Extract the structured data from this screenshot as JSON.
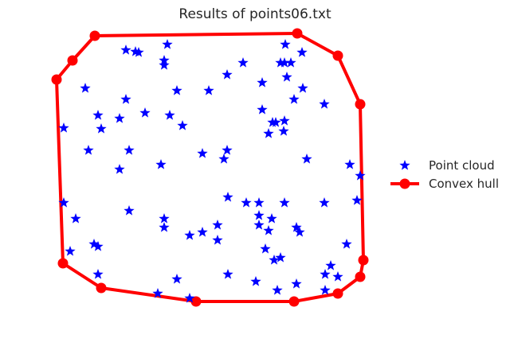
{
  "chart_data": {
    "type": "scatter",
    "title": "Results of points06.txt",
    "xlabel": "",
    "ylabel": "",
    "grid": false,
    "axes_visible": false,
    "legend_placement": "center-right, outside plot",
    "series": [
      {
        "name": "Point cloud",
        "kind": "scatter",
        "marker": "star",
        "color": "#0000ff",
        "points": [
          [
            158,
            63
          ],
          [
            170,
            65
          ],
          [
            174,
            66
          ],
          [
            210,
            56
          ],
          [
            206,
            76
          ],
          [
            206,
            82
          ],
          [
            305,
            79
          ],
          [
            358,
            56
          ],
          [
            352,
            79
          ],
          [
            357,
            79
          ],
          [
            365,
            79
          ],
          [
            379,
            66
          ],
          [
            360,
            97
          ],
          [
            329,
            104
          ],
          [
            380,
            111
          ],
          [
            369,
            125
          ],
          [
            407,
            131
          ],
          [
            107,
            111
          ],
          [
            222,
            114
          ],
          [
            262,
            114
          ],
          [
            285,
            94
          ],
          [
            158,
            125
          ],
          [
            182,
            142
          ],
          [
            213,
            145
          ],
          [
            150,
            149
          ],
          [
            229,
            158
          ],
          [
            123,
            145
          ],
          [
            127,
            162
          ],
          [
            80,
            161
          ],
          [
            329,
            138
          ],
          [
            342,
            154
          ],
          [
            346,
            154
          ],
          [
            357,
            152
          ],
          [
            356,
            165
          ],
          [
            337,
            168
          ],
          [
            111,
            189
          ],
          [
            162,
            189
          ],
          [
            150,
            213
          ],
          [
            202,
            207
          ],
          [
            254,
            193
          ],
          [
            285,
            189
          ],
          [
            281,
            200
          ],
          [
            385,
            200
          ],
          [
            439,
            207
          ],
          [
            452,
            221
          ],
          [
            80,
            255
          ],
          [
            95,
            275
          ],
          [
            162,
            265
          ],
          [
            206,
            275
          ],
          [
            206,
            286
          ],
          [
            238,
            296
          ],
          [
            254,
            292
          ],
          [
            273,
            283
          ],
          [
            273,
            302
          ],
          [
            286,
            248
          ],
          [
            309,
            255
          ],
          [
            325,
            255
          ],
          [
            357,
            255
          ],
          [
            325,
            271
          ],
          [
            341,
            275
          ],
          [
            325,
            283
          ],
          [
            337,
            290
          ],
          [
            372,
            286
          ],
          [
            376,
            292
          ],
          [
            407,
            255
          ],
          [
            448,
            252
          ],
          [
            435,
            307
          ],
          [
            88,
            316
          ],
          [
            118,
            307
          ],
          [
            123,
            310
          ],
          [
            333,
            313
          ],
          [
            352,
            324
          ],
          [
            344,
            327
          ],
          [
            415,
            334
          ],
          [
            408,
            345
          ],
          [
            424,
            348
          ],
          [
            123,
            345
          ],
          [
            222,
            351
          ],
          [
            286,
            345
          ],
          [
            321,
            354
          ],
          [
            348,
            365
          ],
          [
            372,
            357
          ],
          [
            408,
            365
          ],
          [
            198,
            369
          ],
          [
            238,
            375
          ]
        ]
      },
      {
        "name": "Convex hull",
        "kind": "line",
        "marker": "circle",
        "color": "#ff0000",
        "points": [
          [
            119,
            45
          ],
          [
            373,
            42
          ],
          [
            424,
            70
          ],
          [
            452,
            131
          ],
          [
            456,
            327
          ],
          [
            452,
            348
          ],
          [
            424,
            369
          ],
          [
            369,
            379
          ],
          [
            246,
            379
          ],
          [
            127,
            362
          ],
          [
            79,
            331
          ],
          [
            71,
            100
          ],
          [
            91,
            76
          ],
          [
            119,
            45
          ]
        ]
      }
    ],
    "legend": [
      {
        "label": "Point cloud",
        "marker": "star",
        "color": "#0000ff"
      },
      {
        "label": "Convex hull",
        "marker": "circle-line",
        "color": "#ff0000"
      }
    ]
  }
}
